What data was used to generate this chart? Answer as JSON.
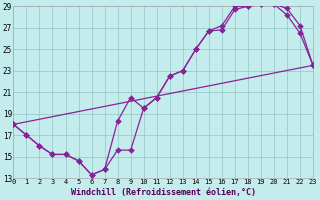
{
  "xlabel": "Windchill (Refroidissement éolien,°C)",
  "xlim": [
    0,
    23
  ],
  "ylim": [
    13,
    29
  ],
  "xticks": [
    0,
    1,
    2,
    3,
    4,
    5,
    6,
    7,
    8,
    9,
    10,
    11,
    12,
    13,
    14,
    15,
    16,
    17,
    18,
    19,
    20,
    21,
    22,
    23
  ],
  "yticks": [
    13,
    15,
    17,
    19,
    21,
    23,
    25,
    27,
    29
  ],
  "bg_color": "#c4ecec",
  "grid_color": "#99cccc",
  "line_color": "#882299",
  "curve1_x": [
    0,
    1,
    2,
    3,
    4,
    5,
    6,
    7,
    8,
    9,
    10,
    11,
    12,
    13,
    14,
    15,
    16,
    17,
    18,
    19,
    20,
    21,
    22,
    23
  ],
  "curve1_y": [
    18.0,
    17.0,
    16.0,
    15.2,
    15.2,
    14.6,
    13.3,
    13.8,
    18.3,
    20.5,
    19.5,
    20.5,
    22.5,
    23.0,
    25.0,
    26.7,
    27.2,
    29.0,
    29.0,
    29.2,
    29.2,
    28.8,
    27.2,
    23.5
  ],
  "curve2_x": [
    0,
    1,
    2,
    3,
    4,
    5,
    6,
    7,
    8,
    9,
    10,
    11,
    12,
    13,
    14,
    15,
    16,
    17,
    18,
    19,
    20,
    21,
    22,
    23
  ],
  "curve2_y": [
    18.0,
    17.0,
    16.0,
    15.2,
    15.2,
    14.6,
    13.3,
    13.8,
    15.6,
    15.6,
    19.5,
    20.5,
    22.5,
    23.0,
    25.0,
    26.7,
    26.8,
    28.7,
    29.0,
    29.2,
    29.2,
    28.2,
    26.5,
    23.5
  ],
  "curve3_x": [
    0,
    23
  ],
  "curve3_y": [
    18.0,
    23.5
  ],
  "markersize": 3,
  "linewidth": 0.9
}
